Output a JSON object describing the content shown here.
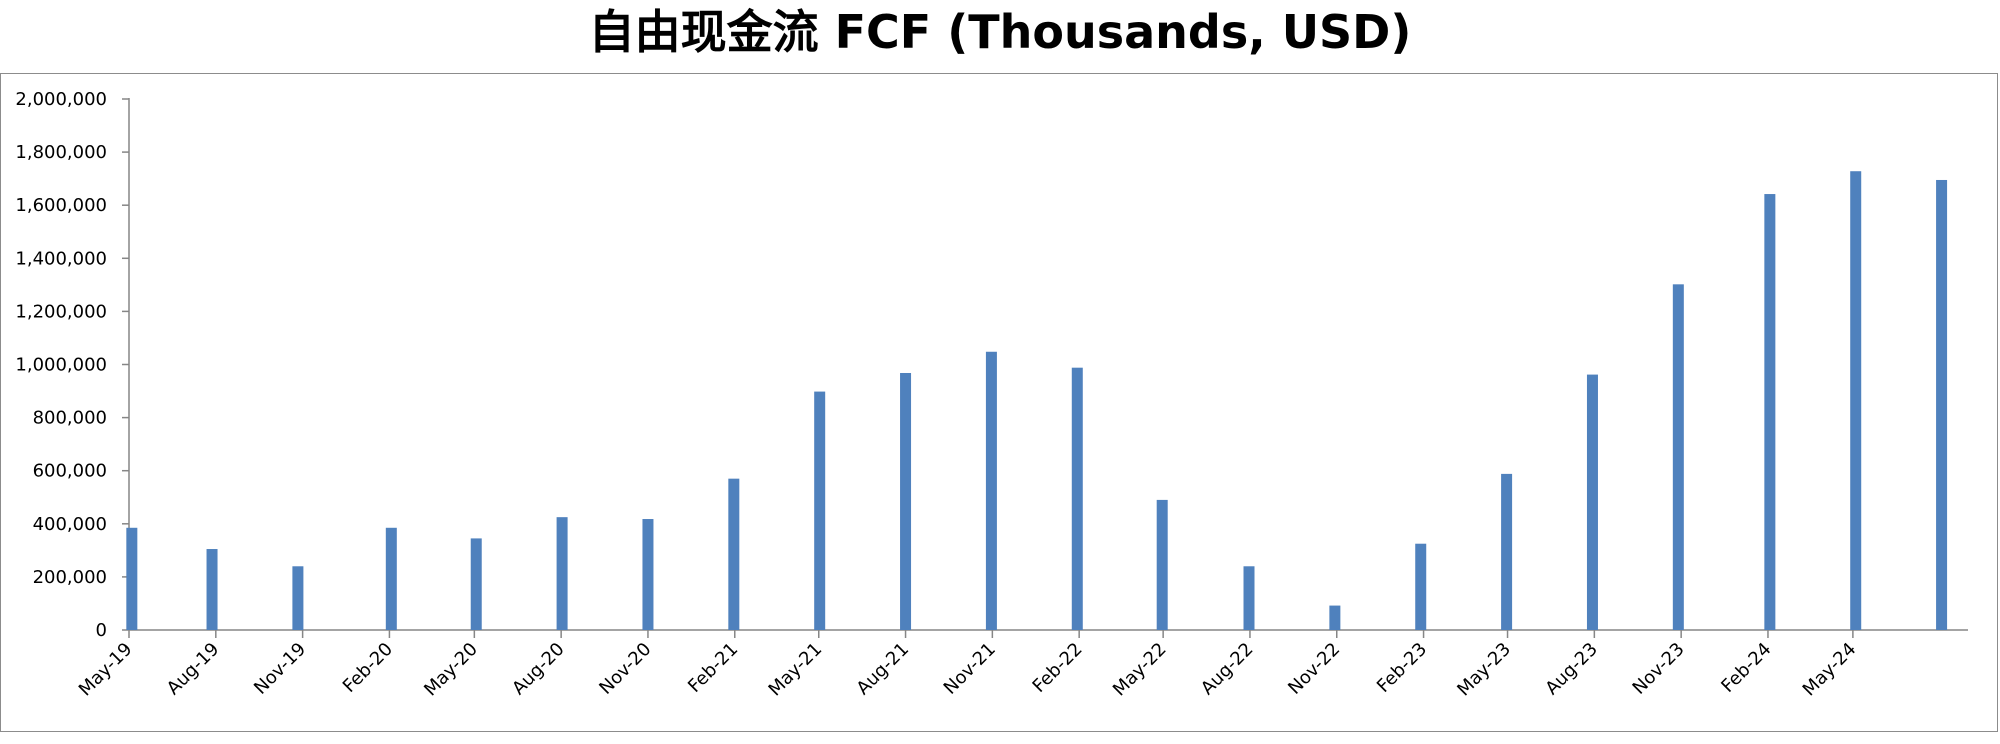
{
  "chart_data": {
    "type": "bar",
    "title": "自由现金流 FCF (Thousands, USD)",
    "xlabel": "",
    "ylabel": "",
    "ylim": [
      0,
      2000000
    ],
    "yticks": [
      0,
      200000,
      400000,
      600000,
      800000,
      1000000,
      1200000,
      1400000,
      1600000,
      1800000,
      2000000
    ],
    "ytick_labels": [
      "0",
      "200,000",
      "400,000",
      "600,000",
      "800,000",
      "1,000,000",
      "1,200,000",
      "1,400,000",
      "1,600,000",
      "1,800,000",
      "2,000,000"
    ],
    "x_date_range": [
      "2019-05-01",
      "2024-08-31"
    ],
    "xtick_labels": [
      "May-19",
      "Aug-19",
      "Nov-19",
      "Feb-20",
      "May-20",
      "Aug-20",
      "Nov-20",
      "Feb-21",
      "May-21",
      "Aug-21",
      "Nov-21",
      "Feb-22",
      "May-22",
      "Aug-22",
      "Nov-22",
      "Feb-23",
      "May-23",
      "Aug-23",
      "Nov-23",
      "Feb-24",
      "May-24"
    ],
    "xtick_dates": [
      "2019-05-01",
      "2019-08-01",
      "2019-11-01",
      "2020-02-01",
      "2020-05-01",
      "2020-08-01",
      "2020-11-01",
      "2021-02-01",
      "2021-05-01",
      "2021-08-01",
      "2021-11-01",
      "2022-02-01",
      "2022-05-01",
      "2022-08-01",
      "2022-11-01",
      "2023-02-01",
      "2023-05-01",
      "2023-08-01",
      "2023-11-01",
      "2024-02-01",
      "2024-05-01"
    ],
    "points": [
      {
        "date": "2019-05-04",
        "value": 385000
      },
      {
        "date": "2019-07-28",
        "value": 305000
      },
      {
        "date": "2019-10-27",
        "value": 240000
      },
      {
        "date": "2020-02-03",
        "value": 385000
      },
      {
        "date": "2020-05-03",
        "value": 345000
      },
      {
        "date": "2020-08-02",
        "value": 425000
      },
      {
        "date": "2020-11-01",
        "value": 418000
      },
      {
        "date": "2021-01-31",
        "value": 570000
      },
      {
        "date": "2021-05-02",
        "value": 898000
      },
      {
        "date": "2021-08-01",
        "value": 968000
      },
      {
        "date": "2021-10-31",
        "value": 1048000
      },
      {
        "date": "2022-01-30",
        "value": 988000
      },
      {
        "date": "2022-04-30",
        "value": 490000
      },
      {
        "date": "2022-07-31",
        "value": 240000
      },
      {
        "date": "2022-10-30",
        "value": 92000
      },
      {
        "date": "2023-01-29",
        "value": 325000
      },
      {
        "date": "2023-04-30",
        "value": 588000
      },
      {
        "date": "2023-07-30",
        "value": 962000
      },
      {
        "date": "2023-10-29",
        "value": 1302000
      },
      {
        "date": "2024-02-03",
        "value": 1642000
      },
      {
        "date": "2024-05-04",
        "value": 1728000
      },
      {
        "date": "2024-08-03",
        "value": 1695000
      }
    ],
    "bar_color": "#4f81bd",
    "grid": false,
    "legend": "none"
  }
}
